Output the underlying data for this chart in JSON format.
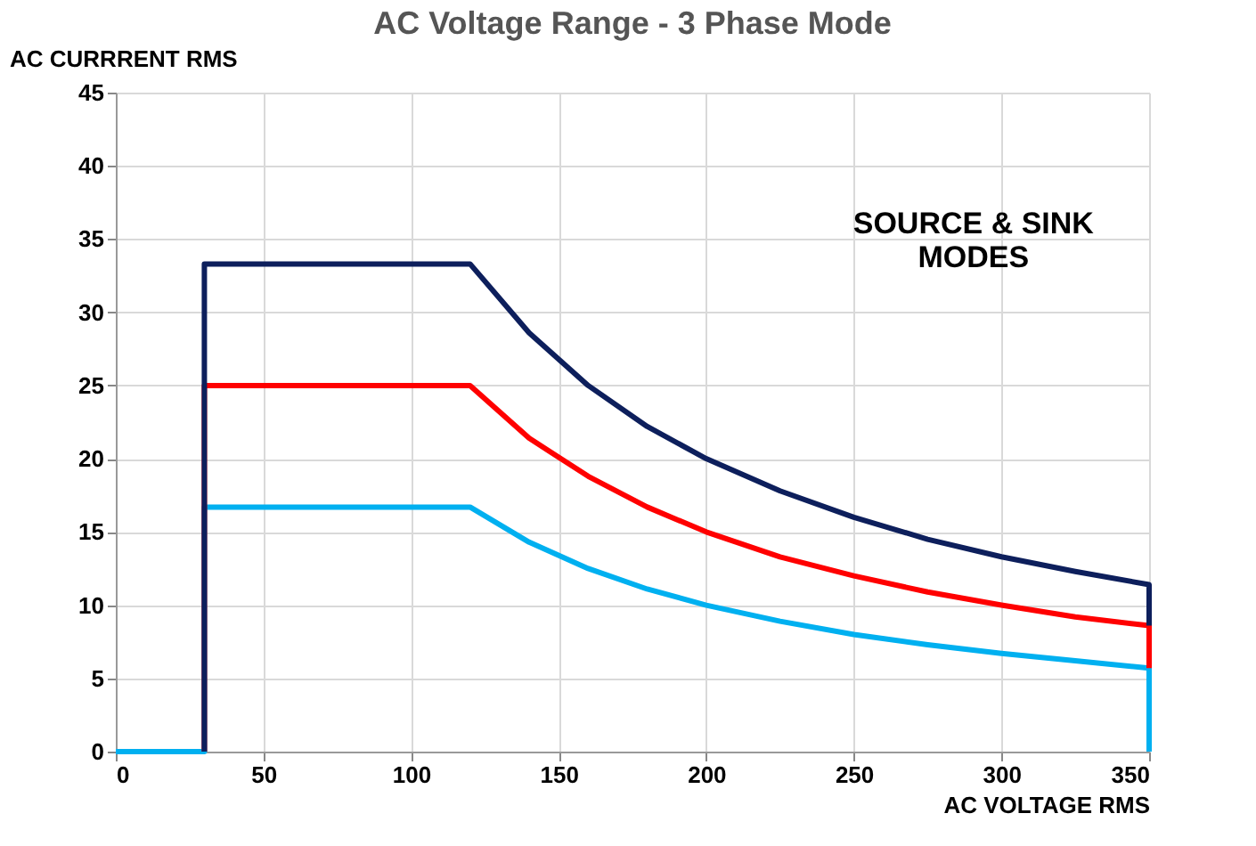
{
  "chart_data": {
    "type": "line",
    "title": "AC Voltage Range - 3 Phase Mode",
    "xlabel": "AC VOLTAGE RMS",
    "ylabel": "AC CURRRENT RMS",
    "annotations": [
      "SOURCE & SINK MODES"
    ],
    "series": [
      {
        "color": "#00b0f0",
        "x": [
          0,
          30,
          30,
          120,
          140,
          160,
          180,
          200,
          225,
          250,
          275,
          300,
          325,
          350,
          350
        ],
        "values": [
          0,
          0,
          16.7,
          16.7,
          14.3,
          12.5,
          11.1,
          10,
          8.9,
          8,
          7.3,
          6.7,
          6.2,
          5.7,
          0
        ]
      },
      {
        "color": "#ff0000",
        "x": [
          30,
          30,
          120,
          140,
          160,
          180,
          200,
          225,
          250,
          275,
          300,
          325,
          350,
          350
        ],
        "values": [
          0,
          25,
          25,
          21.4,
          18.8,
          16.7,
          15,
          13.3,
          12,
          10.9,
          10,
          9.2,
          8.6,
          5.7
        ]
      },
      {
        "color": "#0d1f5c",
        "x": [
          30,
          30,
          120,
          140,
          160,
          180,
          200,
          225,
          250,
          275,
          300,
          325,
          350,
          350
        ],
        "values": [
          0,
          33.3,
          33.3,
          28.6,
          25,
          22.2,
          20,
          17.8,
          16,
          14.5,
          13.3,
          12.3,
          11.4,
          8.6
        ]
      }
    ],
    "xlim": [
      0,
      350
    ],
    "ylim": [
      0,
      45
    ],
    "xticks": [
      0,
      50,
      100,
      150,
      200,
      250,
      300,
      350
    ],
    "yticks": [
      0,
      5,
      10,
      15,
      20,
      25,
      30,
      35,
      40,
      45
    ],
    "grid": true,
    "legend": false,
    "line_style": "solid",
    "marker": "none"
  }
}
